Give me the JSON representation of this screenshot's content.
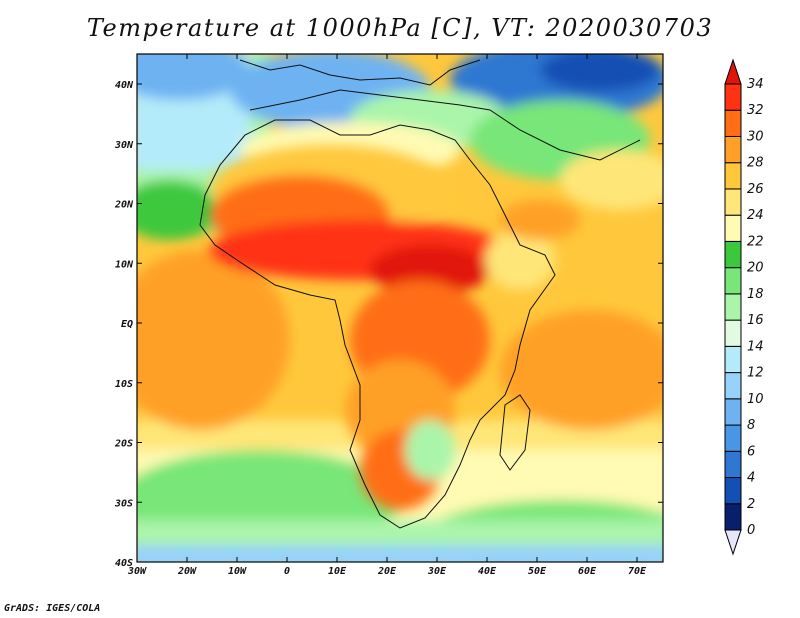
{
  "title": "Temperature at 1000hPa [C], VT: 2020030703",
  "credit": "GrADS: IGES/COLA",
  "map": {
    "lat_labels": [
      "40N",
      "30N",
      "20N",
      "10N",
      "EQ",
      "10S",
      "20S",
      "30S",
      "40S"
    ],
    "lon_labels": [
      "30W",
      "20W",
      "10W",
      "0",
      "10E",
      "20E",
      "30E",
      "40E",
      "50E",
      "60E",
      "70E"
    ]
  },
  "colorbar": {
    "levels": [
      "0",
      "2",
      "4",
      "6",
      "8",
      "10",
      "12",
      "14",
      "16",
      "18",
      "20",
      "22",
      "24",
      "26",
      "28",
      "30",
      "32",
      "34"
    ],
    "colors": [
      "#e6e6fa",
      "#0a1e6e",
      "#1450b4",
      "#2e78d2",
      "#4a96e6",
      "#6eb2f2",
      "#96d2fa",
      "#b4ebfa",
      "#e1fae1",
      "#aaf5aa",
      "#78e678",
      "#3cc83c",
      "#fffab4",
      "#ffe678",
      "#ffc83c",
      "#ffa028",
      "#ff6e14",
      "#ff3214",
      "#e1140a"
    ]
  }
}
